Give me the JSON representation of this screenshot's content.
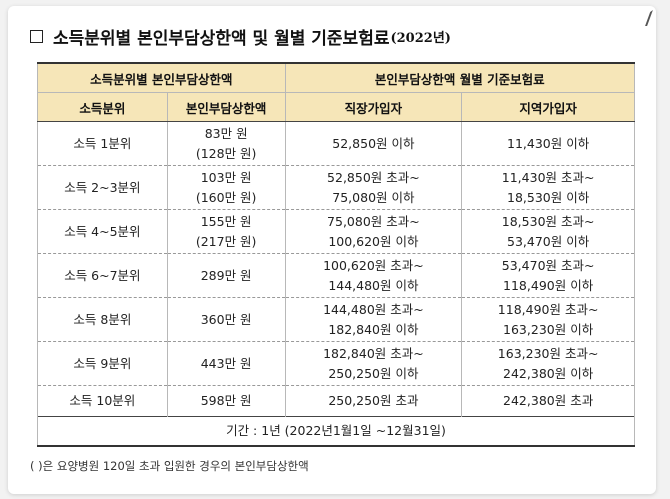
{
  "title": {
    "main": "소득분위별 본인부담상한액 및 월별 기준보험료",
    "year": "(2022년)"
  },
  "table": {
    "group_headers": [
      "소득분위별 본인부담상한액",
      "본인부담상한액 월별 기준보험료"
    ],
    "column_headers": [
      "소득분위",
      "본인부담상한액",
      "직장가입자",
      "지역가입자"
    ],
    "rows": [
      {
        "decile": "소득 1분위",
        "cap": [
          "83만 원",
          "(128만 원)"
        ],
        "employee": [
          "52,850원 이하"
        ],
        "regional": [
          "11,430원 이하"
        ]
      },
      {
        "decile": "소득 2~3분위",
        "cap": [
          "103만 원",
          "(160만 원)"
        ],
        "employee": [
          "52,850원 초과~",
          "75,080원 이하"
        ],
        "regional": [
          "11,430원 초과~",
          "18,530원 이하"
        ]
      },
      {
        "decile": "소득 4~5분위",
        "cap": [
          "155만 원",
          "(217만 원)"
        ],
        "employee": [
          "75,080원 초과~",
          "100,620원 이하"
        ],
        "regional": [
          "18,530원 초과~",
          "53,470원 이하"
        ]
      },
      {
        "decile": "소득 6~7분위",
        "cap": [
          "289만 원"
        ],
        "employee": [
          "100,620원 초과~",
          "144,480원 이하"
        ],
        "regional": [
          "53,470원 초과~",
          "118,490원 이하"
        ]
      },
      {
        "decile": "소득 8분위",
        "cap": [
          "360만 원"
        ],
        "employee": [
          "144,480원 초과~",
          "182,840원 이하"
        ],
        "regional": [
          "118,490원 초과~",
          "163,230원 이하"
        ]
      },
      {
        "decile": "소득 9분위",
        "cap": [
          "443만 원"
        ],
        "employee": [
          "182,840원 초과~",
          "250,250원 이하"
        ],
        "regional": [
          "163,230원 초과~",
          "242,380원 이하"
        ]
      },
      {
        "decile": "소득 10분위",
        "cap": [
          "598만 원"
        ],
        "employee": [
          "250,250원 초과"
        ],
        "regional": [
          "242,380원 초과"
        ]
      }
    ],
    "period": "기간 : 1년 (2022년1월1일 ~12월31일)"
  },
  "footnote": "(   )은 요양병원 120일 초과 입원한 경우의 본인부담상한액",
  "colors": {
    "header_bg": "#f6e6b8",
    "page_bg": "#f2f2f2"
  }
}
